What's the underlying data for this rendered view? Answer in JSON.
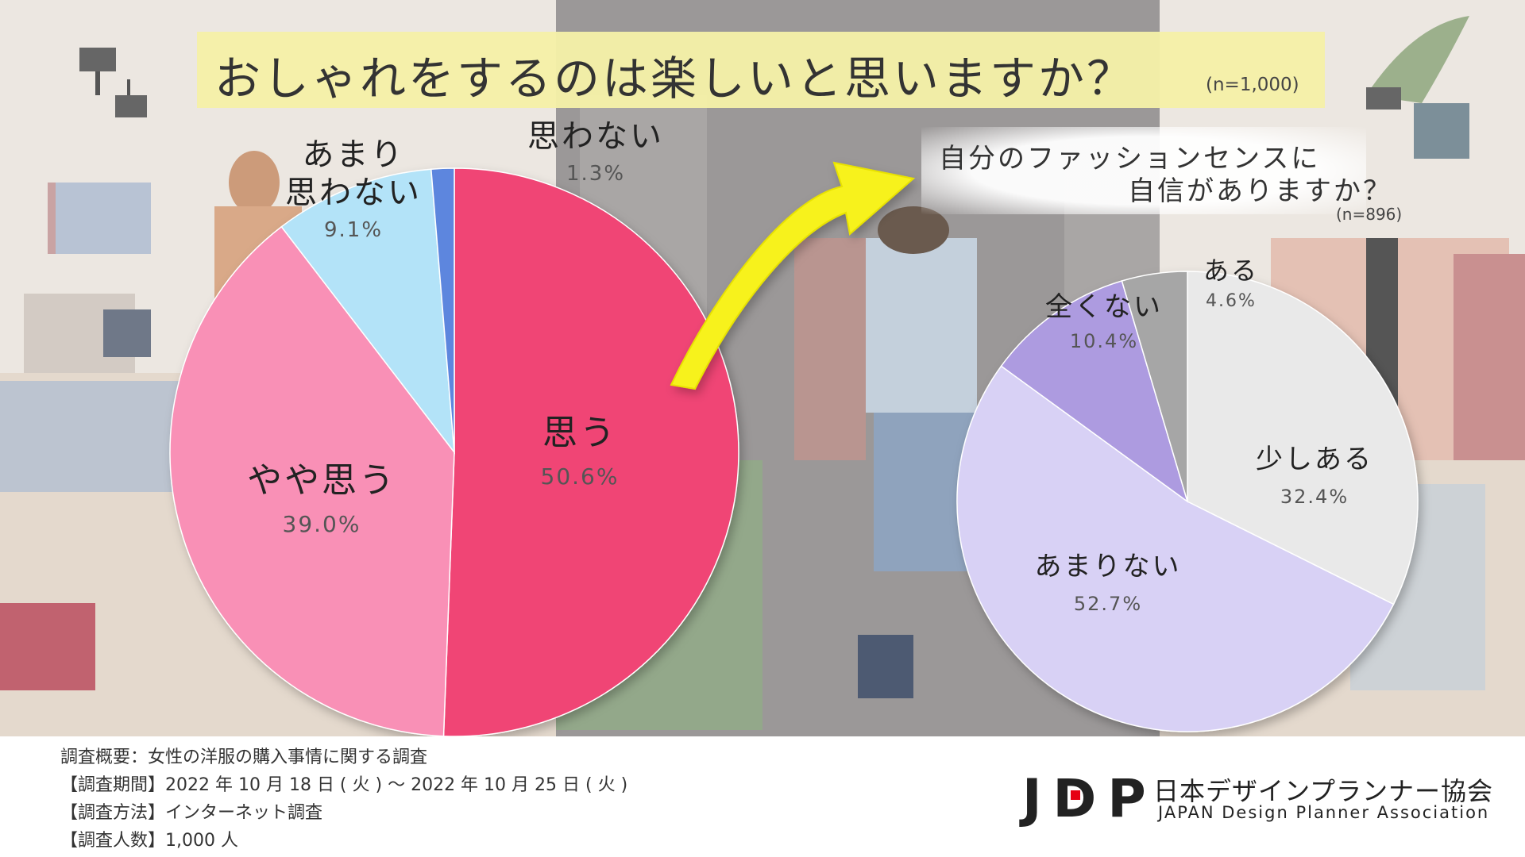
{
  "title": "おしゃれをするのは楽しいと思いますか？",
  "title_n": "(n=1,000)",
  "subtitle_line1": "自分のファッションセンスに",
  "subtitle_line2": "自信がありますか？",
  "subtitle_n": "(n=896)",
  "chart_data": [
    {
      "type": "pie",
      "slices": [
        {
          "label": "思う",
          "value": 50.6,
          "value_label": "50.6%",
          "color": "#f04575"
        },
        {
          "label": "やや思う",
          "value": 39.0,
          "value_label": "39.0%",
          "color": "#f990b6"
        },
        {
          "label": "あまり思わない",
          "value": 9.1,
          "value_label": "9.1%",
          "color": "#b3e3f8"
        },
        {
          "label": "思わない",
          "value": 1.3,
          "value_label": "1.3%",
          "color": "#5d86de"
        }
      ]
    },
    {
      "type": "pie",
      "slices": [
        {
          "label": "少しある",
          "value": 32.4,
          "value_label": "32.4%",
          "color": "#e9e9e9"
        },
        {
          "label": "あまりない",
          "value": 52.7,
          "value_label": "52.7%",
          "color": "#d8d1f5"
        },
        {
          "label": "全くない",
          "value": 10.4,
          "value_label": "10.4%",
          "color": "#ad9be0"
        },
        {
          "label": "ある",
          "value": 4.6,
          "value_label": "4.6%",
          "color": "#a6a6a6"
        }
      ]
    }
  ],
  "footer": {
    "summary": "調査概要：女性の洋服の購入事情に関する調査",
    "period": "【調査期間】2022 年 10 月 18 日 ( 火 ) 〜 2022 年 10 月 25 日 ( 火 )",
    "method": "【調査方法】インターネット調査",
    "count": "【調査人数】1,000 人"
  },
  "logo": {
    "mark": "JDP",
    "name_ja": "日本デザインプランナー協会",
    "name_en": "JAPAN Design Planner Association"
  },
  "colors": {
    "arrow": "#f7f21c",
    "banner": "#f5f0a8",
    "logo_dot": "#e60012"
  }
}
